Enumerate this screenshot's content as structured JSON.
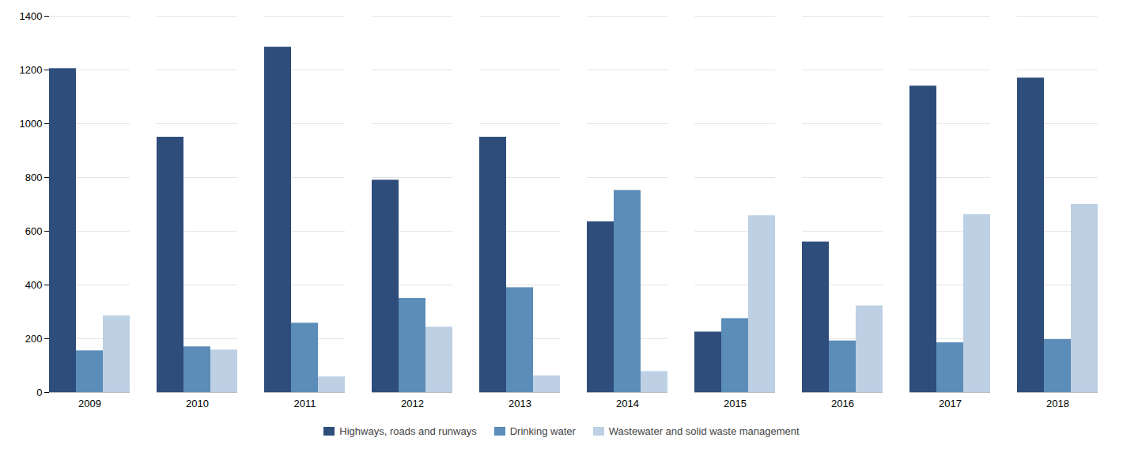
{
  "chart_data": {
    "type": "bar",
    "categories": [
      "2009",
      "2010",
      "2011",
      "2012",
      "2013",
      "2014",
      "2015",
      "2016",
      "2017",
      "2018"
    ],
    "series": [
      {
        "name": "Highways, roads and runways",
        "color": "#2E4D7B",
        "values": [
          1205,
          950,
          1285,
          790,
          950,
          635,
          225,
          560,
          1140,
          1170
        ]
      },
      {
        "name": "Drinking water",
        "color": "#5B8DB8",
        "values": [
          155,
          170,
          258,
          350,
          390,
          752,
          275,
          192,
          185,
          197
        ]
      },
      {
        "name": "Wastewater and solid waste management",
        "color": "#BDD0E4",
        "values": [
          285,
          158,
          58,
          243,
          62,
          78,
          658,
          322,
          662,
          700
        ]
      }
    ],
    "ylim": [
      0,
      1400
    ],
    "yticks": [
      0,
      200,
      400,
      600,
      800,
      1000,
      1200,
      1400
    ],
    "grid": true,
    "legend": "bottom"
  }
}
